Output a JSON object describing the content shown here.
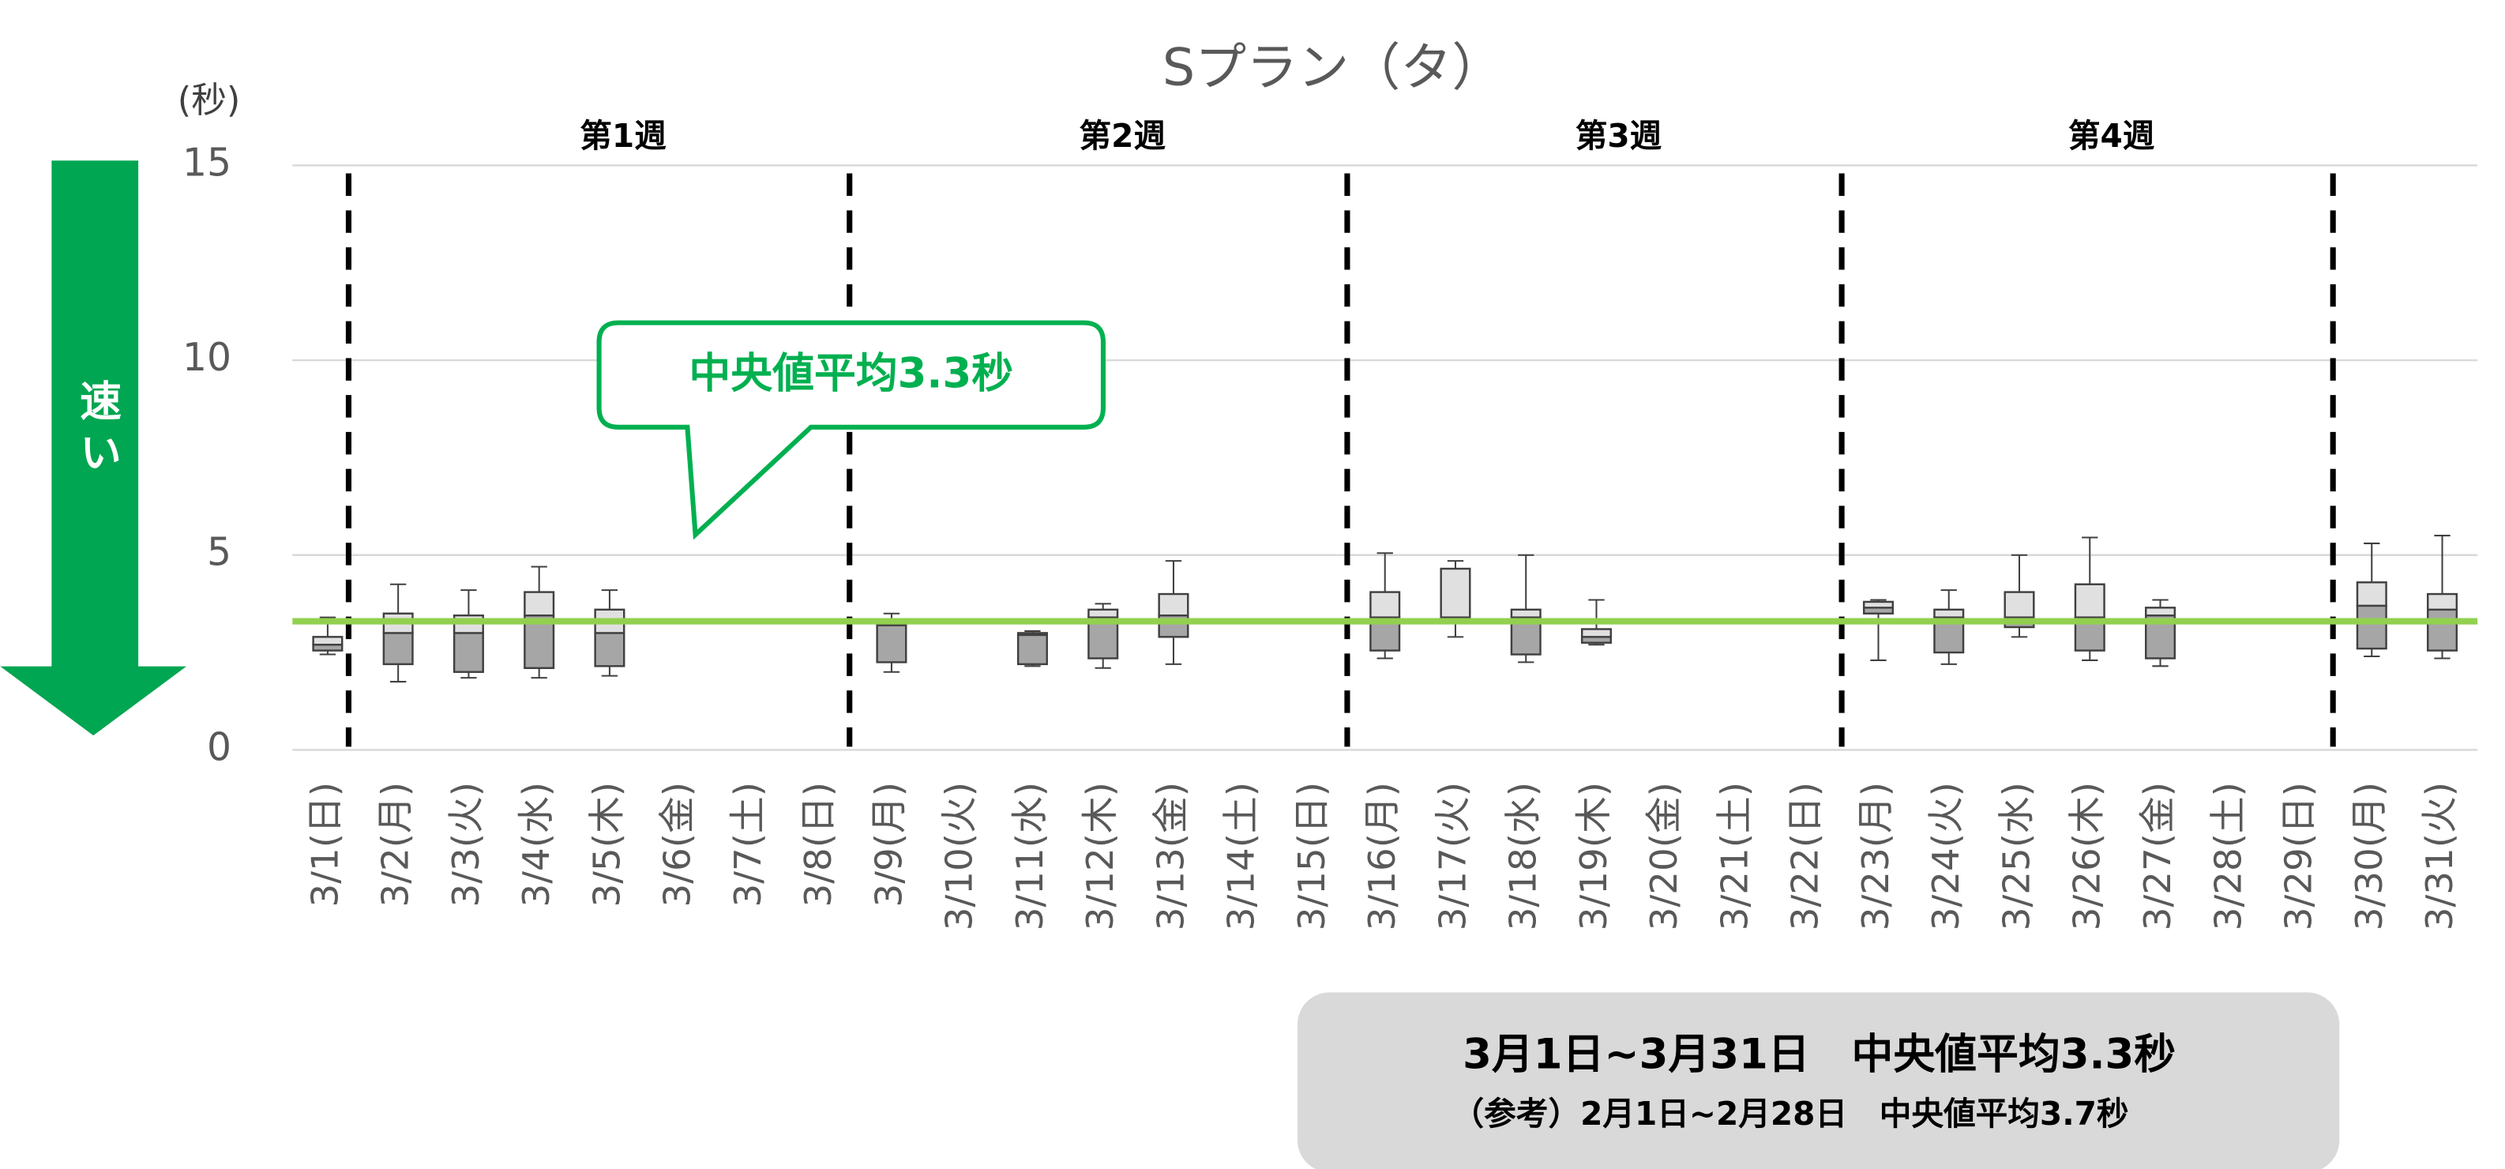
{
  "chart_data": {
    "type": "box",
    "title": "Sプラン（タ）",
    "y_label": "(秒)",
    "speed_label": "速い",
    "weeks": [
      "第1週",
      "第2週",
      "第3週",
      "第4週"
    ],
    "categories": [
      "3/1(日)",
      "3/2(月)",
      "3/3(火)",
      "3/4(水)",
      "3/5(木)",
      "3/6(金)",
      "3/7(土)",
      "3/8(日)",
      "3/9(月)",
      "3/10(火)",
      "3/11(水)",
      "3/12(木)",
      "3/13(金)",
      "3/14(土)",
      "3/15(日)",
      "3/16(月)",
      "3/17(火)",
      "3/18(水)",
      "3/19(木)",
      "3/20(金)",
      "3/21(土)",
      "3/22(日)",
      "3/23(月)",
      "3/24(火)",
      "3/25(水)",
      "3/26(木)",
      "3/27(金)",
      "3/28(土)",
      "3/29(日)",
      "3/30(月)",
      "3/31(火)"
    ],
    "boxes": [
      {
        "min": 2.45,
        "q1": 2.55,
        "median": 2.7,
        "q3": 2.9,
        "max": 3.4
      },
      {
        "min": 1.75,
        "q1": 2.2,
        "median": 3.0,
        "q3": 3.5,
        "max": 4.25
      },
      {
        "min": 1.85,
        "q1": 2.0,
        "median": 3.0,
        "q3": 3.45,
        "max": 4.1
      },
      {
        "min": 1.85,
        "q1": 2.1,
        "median": 3.45,
        "q3": 4.05,
        "max": 4.7
      },
      {
        "min": 1.9,
        "q1": 2.15,
        "median": 3.0,
        "q3": 3.6,
        "max": 4.1
      },
      null,
      null,
      null,
      {
        "min": 2.0,
        "q1": 2.25,
        "median": 3.2,
        "q3": 3.25,
        "max": 3.5
      },
      null,
      {
        "min": 2.15,
        "q1": 2.2,
        "median": 2.95,
        "q3": 3.0,
        "max": 3.05
      },
      {
        "min": 2.1,
        "q1": 2.35,
        "median": 3.4,
        "q3": 3.6,
        "max": 3.75
      },
      {
        "min": 2.2,
        "q1": 2.9,
        "median": 3.45,
        "q3": 4.0,
        "max": 4.85
      },
      null,
      null,
      {
        "min": 2.35,
        "q1": 2.55,
        "median": 3.4,
        "q3": 4.05,
        "max": 5.05
      },
      {
        "min": 2.9,
        "q1": 3.4,
        "median": 3.4,
        "q3": 4.65,
        "max": 4.85
      },
      {
        "min": 2.25,
        "q1": 2.45,
        "median": 3.4,
        "q3": 3.6,
        "max": 5.0
      },
      {
        "min": 2.7,
        "q1": 2.75,
        "median": 2.9,
        "q3": 3.1,
        "max": 3.85
      },
      null,
      null,
      null,
      {
        "min": 2.3,
        "q1": 3.5,
        "median": 3.65,
        "q3": 3.8,
        "max": 3.85
      },
      {
        "min": 2.2,
        "q1": 2.5,
        "median": 3.4,
        "q3": 3.6,
        "max": 4.1
      },
      {
        "min": 2.9,
        "q1": 3.15,
        "median": 3.4,
        "q3": 4.05,
        "max": 5.0
      },
      {
        "min": 2.3,
        "q1": 2.55,
        "median": 3.4,
        "q3": 4.25,
        "max": 5.45
      },
      {
        "min": 2.15,
        "q1": 2.35,
        "median": 3.45,
        "q3": 3.65,
        "max": 3.85
      },
      null,
      null,
      {
        "min": 2.4,
        "q1": 2.6,
        "median": 3.7,
        "q3": 4.3,
        "max": 5.3
      },
      {
        "min": 2.35,
        "q1": 2.55,
        "median": 3.6,
        "q3": 4.0,
        "max": 5.5
      }
    ],
    "reference_line": 3.3,
    "reference_color": "#92d050",
    "ylim": [
      0,
      15
    ],
    "yticks": [
      0,
      5,
      10,
      15
    ],
    "grid": true,
    "callout": "中央値平均3.3秒",
    "summary": [
      "3月1日~3月31日　中央値平均3.3秒",
      "（参考）2月1日~2月28日　中央値平均3.7秒"
    ]
  }
}
